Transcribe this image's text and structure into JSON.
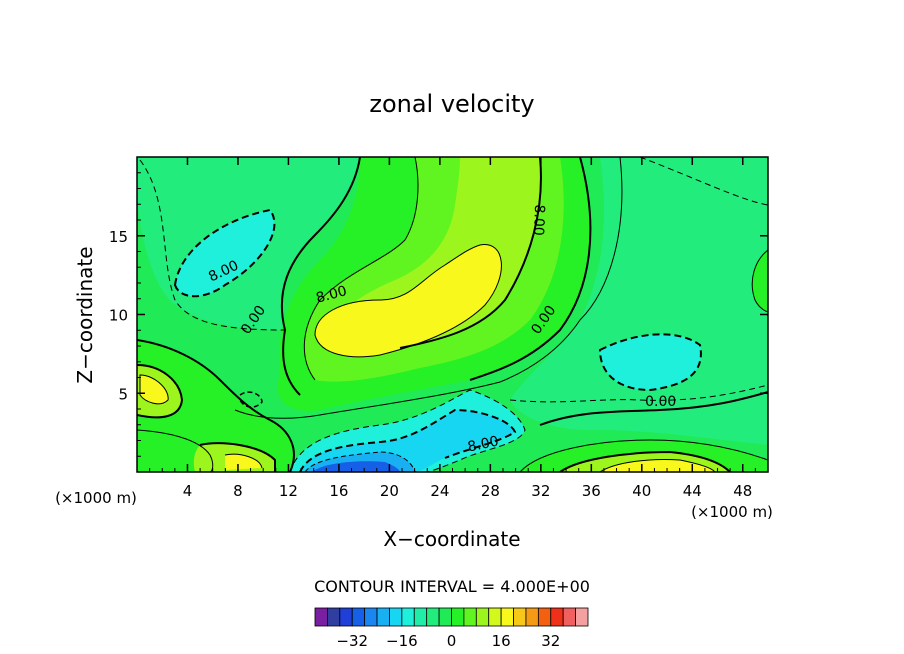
{
  "chart_data": {
    "type": "heatmap",
    "title": "zonal velocity",
    "xlabel": "X−coordinate",
    "ylabel": "Z−coordinate",
    "x_unit_left": "(×1000 m)",
    "x_unit_right": "(×1000 m)",
    "xlim": [
      0,
      50
    ],
    "ylim": [
      0,
      20
    ],
    "x_ticks": [
      "4",
      "8",
      "12",
      "16",
      "20",
      "24",
      "28",
      "32",
      "36",
      "40",
      "44",
      "48"
    ],
    "x_tick_values": [
      4,
      8,
      12,
      16,
      20,
      24,
      28,
      32,
      36,
      40,
      44,
      48
    ],
    "y_ticks": [
      "5",
      "10",
      "15"
    ],
    "y_tick_values": [
      5,
      10,
      15
    ],
    "contour_interval_text": "CONTOUR INTERVAL = 4.000E+00",
    "contour_interval": 4.0,
    "contour_labels": [
      {
        "text": "8.00",
        "x": 7,
        "z": 12.5,
        "rotation": -25
      },
      {
        "text": "0.00",
        "x": 9.5,
        "z": 9.5,
        "rotation": -55
      },
      {
        "text": "8.00",
        "x": 15.5,
        "z": 11,
        "rotation": -15
      },
      {
        "text": "8.00",
        "x": 31.5,
        "z": 16,
        "rotation": 92
      },
      {
        "text": "0.00",
        "x": 32.5,
        "z": 9.5,
        "rotation": -55
      },
      {
        "text": "0.00",
        "x": 41.5,
        "z": 4.2,
        "rotation": 0
      },
      {
        "text": "8.00",
        "x": 27.5,
        "z": 1.5,
        "rotation": -12
      }
    ],
    "colorbar": {
      "levels": [
        -40,
        -36,
        -32,
        -28,
        -24,
        -20,
        -16,
        -12,
        -8,
        -4,
        0,
        4,
        8,
        12,
        16,
        20,
        24,
        28,
        32,
        36,
        40
      ],
      "colors": [
        "#7b1fa2",
        "#303f9f",
        "#1f3fd6",
        "#1560e6",
        "#1a86f0",
        "#18b0f2",
        "#17d6f2",
        "#1ff0dc",
        "#20eea8",
        "#22ec7c",
        "#20ea55",
        "#26f026",
        "#60f420",
        "#9cf51c",
        "#d2f81c",
        "#f8f81c",
        "#f7c818",
        "#f59a14",
        "#f26010",
        "#f03018",
        "#f06060",
        "#f5a0a0"
      ],
      "tick_labels": [
        "−32",
        "−16",
        "0",
        "16",
        "32"
      ],
      "tick_values": [
        -32,
        -16,
        0,
        16,
        32
      ]
    },
    "regions_description": "filled contours of zonal velocity",
    "zones": [
      {
        "name": "positive-core",
        "level": 16,
        "color": "#f8f81c"
      },
      {
        "name": "upper-left-minimum",
        "level": -12,
        "color": "#1ff0dc"
      },
      {
        "name": "surface-minimum",
        "level": -28,
        "color": "#1560e6"
      },
      {
        "name": "surface-positive-right",
        "level": 16,
        "color": "#f8f81c"
      }
    ]
  }
}
